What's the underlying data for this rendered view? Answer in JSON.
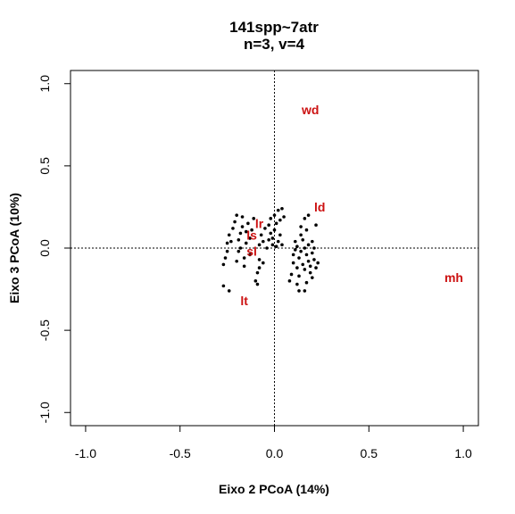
{
  "chart_data": {
    "type": "scatter",
    "title": "141spp~7atr",
    "subtitle": "n=3, v=4",
    "xlabel": "Eixo 2 PCoA (14%)",
    "ylabel": "Eixo 3 PCoA (10%)",
    "xlim": [
      -1.08,
      1.08
    ],
    "ylim": [
      -1.08,
      1.08
    ],
    "xticks": [
      -1.0,
      -0.5,
      0.0,
      0.5,
      1.0
    ],
    "xtick_labels": [
      "-1.0",
      "-0.5",
      "0.0",
      "0.5",
      "1.0"
    ],
    "yticks": [
      -1.0,
      -0.5,
      0.0,
      0.5,
      1.0
    ],
    "ytick_labels": [
      "-1.0",
      "-0.5",
      "0.0",
      "0.5",
      "1.0"
    ],
    "reference_lines": {
      "x": 0,
      "y": 0
    },
    "grid": false,
    "label_color": "#cc1111",
    "point_color": "#000000",
    "variable_labels": [
      {
        "text": "wd",
        "x": 0.19,
        "y": 0.84
      },
      {
        "text": "ld",
        "x": 0.24,
        "y": 0.25
      },
      {
        "text": "lr",
        "x": -0.08,
        "y": 0.15
      },
      {
        "text": "ls",
        "x": -0.12,
        "y": 0.08
      },
      {
        "text": "sl",
        "x": -0.12,
        "y": -0.02
      },
      {
        "text": "mh",
        "x": 0.95,
        "y": -0.18
      },
      {
        "text": "lt",
        "x": -0.16,
        "y": -0.32
      }
    ],
    "points": [
      [
        -0.27,
        -0.23
      ],
      [
        -0.24,
        -0.26
      ],
      [
        -0.27,
        -0.1
      ],
      [
        -0.26,
        -0.06
      ],
      [
        -0.25,
        -0.02
      ],
      [
        -0.25,
        0.03
      ],
      [
        -0.23,
        0.04
      ],
      [
        -0.24,
        0.08
      ],
      [
        -0.22,
        0.12
      ],
      [
        -0.21,
        0.16
      ],
      [
        -0.2,
        0.2
      ],
      [
        -0.2,
        -0.08
      ],
      [
        -0.19,
        -0.02
      ],
      [
        -0.18,
        0.0
      ],
      [
        -0.19,
        0.05
      ],
      [
        -0.18,
        0.09
      ],
      [
        -0.17,
        0.13
      ],
      [
        -0.17,
        0.19
      ],
      [
        -0.16,
        -0.11
      ],
      [
        -0.16,
        -0.06
      ],
      [
        -0.15,
        0.03
      ],
      [
        -0.15,
        0.1
      ],
      [
        -0.14,
        0.15
      ],
      [
        -0.13,
        -0.04
      ],
      [
        -0.13,
        0.06
      ],
      [
        -0.12,
        0.11
      ],
      [
        -0.11,
        0.18
      ],
      [
        -0.1,
        -0.2
      ],
      [
        -0.09,
        -0.22
      ],
      [
        -0.09,
        -0.15
      ],
      [
        -0.08,
        -0.12
      ],
      [
        -0.08,
        -0.07
      ],
      [
        -0.08,
        0.02
      ],
      [
        -0.07,
        0.08
      ],
      [
        -0.06,
        -0.09
      ],
      [
        -0.06,
        0.04
      ],
      [
        -0.05,
        0.12
      ],
      [
        -0.04,
        0.0
      ],
      [
        -0.03,
        0.05
      ],
      [
        -0.03,
        0.14
      ],
      [
        -0.02,
        0.09
      ],
      [
        -0.02,
        0.18
      ],
      [
        -0.01,
        0.02
      ],
      [
        -0.01,
        0.06
      ],
      [
        0.0,
        0.2
      ],
      [
        0.0,
        0.11
      ],
      [
        0.01,
        0.01
      ],
      [
        0.01,
        0.15
      ],
      [
        0.02,
        0.04
      ],
      [
        0.02,
        0.23
      ],
      [
        0.03,
        0.08
      ],
      [
        0.03,
        0.17
      ],
      [
        0.04,
        0.02
      ],
      [
        0.04,
        0.24
      ],
      [
        0.05,
        0.19
      ],
      [
        0.08,
        -0.2
      ],
      [
        0.09,
        -0.16
      ],
      [
        0.1,
        -0.09
      ],
      [
        0.1,
        -0.04
      ],
      [
        0.11,
        -0.01
      ],
      [
        0.11,
        0.04
      ],
      [
        0.12,
        -0.12
      ],
      [
        0.12,
        -0.22
      ],
      [
        0.12,
        0.01
      ],
      [
        0.13,
        -0.06
      ],
      [
        0.13,
        -0.17
      ],
      [
        0.13,
        -0.26
      ],
      [
        0.14,
        0.08
      ],
      [
        0.14,
        0.13
      ],
      [
        0.14,
        -0.02
      ],
      [
        0.15,
        -0.1
      ],
      [
        0.15,
        0.05
      ],
      [
        0.16,
        0.18
      ],
      [
        0.16,
        0.0
      ],
      [
        0.16,
        -0.13
      ],
      [
        0.16,
        -0.26
      ],
      [
        0.17,
        -0.04
      ],
      [
        0.17,
        0.11
      ],
      [
        0.17,
        -0.21
      ],
      [
        0.18,
        0.02
      ],
      [
        0.18,
        0.2
      ],
      [
        0.18,
        -0.08
      ],
      [
        0.19,
        -0.15
      ],
      [
        0.19,
        -0.11
      ],
      [
        0.2,
        0.04
      ],
      [
        0.2,
        -0.03
      ],
      [
        0.2,
        -0.18
      ],
      [
        0.21,
        0.0
      ],
      [
        0.21,
        -0.07
      ],
      [
        0.22,
        0.14
      ],
      [
        0.22,
        -0.12
      ],
      [
        0.23,
        -0.09
      ]
    ]
  }
}
